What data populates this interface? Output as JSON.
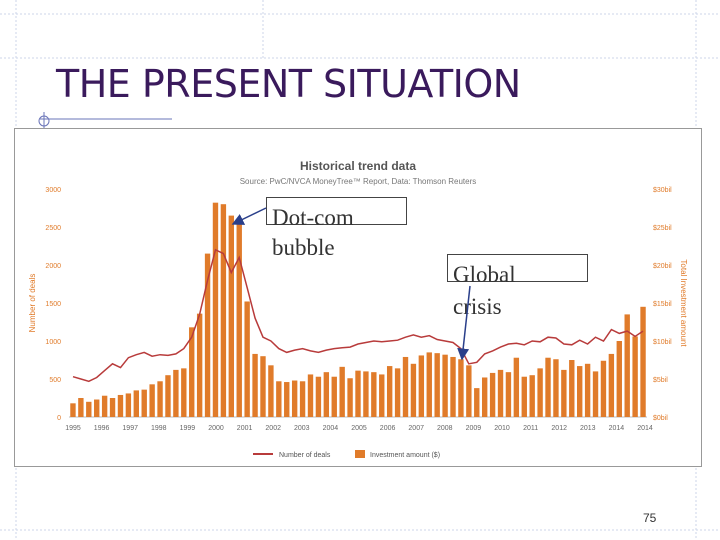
{
  "slide": {
    "title": "THE PRESENT SITUATION",
    "page_number": "75"
  },
  "annotations": {
    "dotcom_line1": "Dot-com",
    "dotcom_line2": "bubble",
    "crisis_line1": "Global",
    "crisis_line2": "crisis"
  },
  "colors": {
    "bar": "#e07b2a",
    "line": "#b83b3b",
    "left_axis_text": "#e07b2a",
    "right_axis_text": "#e07b2a",
    "title": "#3a1a5c"
  },
  "chart_data": {
    "type": "bar",
    "title": "Historical trend data",
    "subtitle": "Source: PwC/NVCA MoneyTree™ Report, Data: Thomson Reuters",
    "ylabel": "Number of deals",
    "y2label": "Total Investment amount",
    "ylim": [
      0,
      3000
    ],
    "y2lim": [
      0,
      30
    ],
    "yticks": [
      "0",
      "500",
      "1000",
      "1500",
      "2000",
      "2500",
      "3000"
    ],
    "y2ticks": [
      "$0bil",
      "$5bil",
      "$10bil",
      "$15bil",
      "$20bil",
      "$25bil",
      "$30bil"
    ],
    "xticks": [
      "1995",
      "1996",
      "1997",
      "1998",
      "1999",
      "2000",
      "2001",
      "2002",
      "2003",
      "2004",
      "2005",
      "2006",
      "2007",
      "2008",
      "2009",
      "2010",
      "2011",
      "2012",
      "2013",
      "2014",
      "2014"
    ],
    "legend_position": "bottom",
    "series": [
      {
        "name": "Investment amount ($)",
        "type": "bar",
        "axis": "right",
        "values": [
          1.8,
          2.5,
          2.0,
          2.3,
          2.8,
          2.5,
          2.9,
          3.1,
          3.5,
          3.6,
          4.3,
          4.7,
          5.5,
          6.2,
          6.4,
          11.8,
          13.6,
          21.5,
          28.2,
          28.0,
          26.5,
          25.4,
          15.2,
          8.3,
          8.0,
          6.8,
          4.7,
          4.6,
          4.8,
          4.7,
          5.6,
          5.3,
          5.9,
          5.3,
          6.6,
          5.1,
          6.1,
          6.0,
          5.9,
          5.6,
          6.7,
          6.4,
          7.9,
          7.0,
          8.1,
          8.5,
          8.4,
          8.2,
          7.9,
          7.6,
          6.8,
          3.8,
          5.2,
          5.8,
          6.2,
          5.9,
          7.8,
          5.3,
          5.5,
          6.4,
          7.8,
          7.6,
          6.2,
          7.5,
          6.7,
          7.0,
          6.0,
          7.4,
          8.3,
          10.0,
          13.5,
          10.6,
          14.5
        ]
      },
      {
        "name": "Number of deals",
        "type": "line",
        "axis": "left",
        "values": [
          530,
          500,
          470,
          520,
          610,
          700,
          650,
          780,
          820,
          850,
          800,
          820,
          810,
          830,
          900,
          1050,
          1350,
          1800,
          2200,
          2150,
          1900,
          2100,
          1700,
          1300,
          1050,
          1000,
          900,
          850,
          880,
          900,
          870,
          850,
          880,
          900,
          910,
          920,
          960,
          980,
          1000,
          990,
          1000,
          1010,
          1050,
          1080,
          1050,
          1070,
          1020,
          1000,
          980,
          900,
          700,
          720,
          830,
          870,
          920,
          960,
          970,
          950,
          1000,
          990,
          1050,
          1040,
          960,
          950,
          1010,
          960,
          1050,
          1000,
          1150,
          1100,
          1130,
          1060,
          1130
        ]
      }
    ]
  }
}
